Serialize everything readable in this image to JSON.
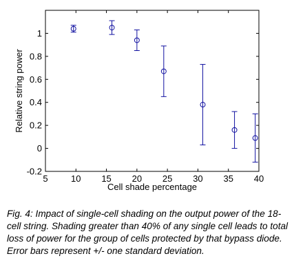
{
  "chart_data": {
    "type": "scatter",
    "title": "",
    "xlabel": "Cell shade percentage",
    "ylabel": "Relative string power",
    "xlim": [
      5,
      40
    ],
    "ylim": [
      -0.2,
      1.2
    ],
    "x_ticks": [
      5,
      10,
      15,
      20,
      25,
      30,
      35,
      40
    ],
    "y_ticks": [
      -0.2,
      0,
      0.2,
      0.4,
      0.6,
      0.8,
      1
    ],
    "x_tick_labels": [
      "5",
      "10",
      "15",
      "20",
      "25",
      "30",
      "35",
      "40"
    ],
    "y_tick_labels": [
      "-0.2",
      "0",
      "0.2",
      "0.4",
      "0.6",
      "0.8",
      "1"
    ],
    "grid": false,
    "marker": "circle",
    "color": "#1010a0",
    "points": [
      {
        "x": 9.6,
        "y": 1.04,
        "err": 0.03
      },
      {
        "x": 15.9,
        "y": 1.05,
        "err": 0.06
      },
      {
        "x": 20.0,
        "y": 0.94,
        "err": 0.09
      },
      {
        "x": 24.4,
        "y": 0.67,
        "err": 0.22
      },
      {
        "x": 30.8,
        "y": 0.38,
        "err": 0.35
      },
      {
        "x": 36.0,
        "y": 0.16,
        "err": 0.16
      },
      {
        "x": 39.4,
        "y": 0.09,
        "err": 0.21
      }
    ]
  },
  "caption": "Fig. 4:  Impact of single-cell shading on the output power of the 18-cell string.  Shading greater than 40% of any single cell leads to total loss of power for the group of cells protected by that bypass diode. Error bars represent +/- one standard deviation."
}
